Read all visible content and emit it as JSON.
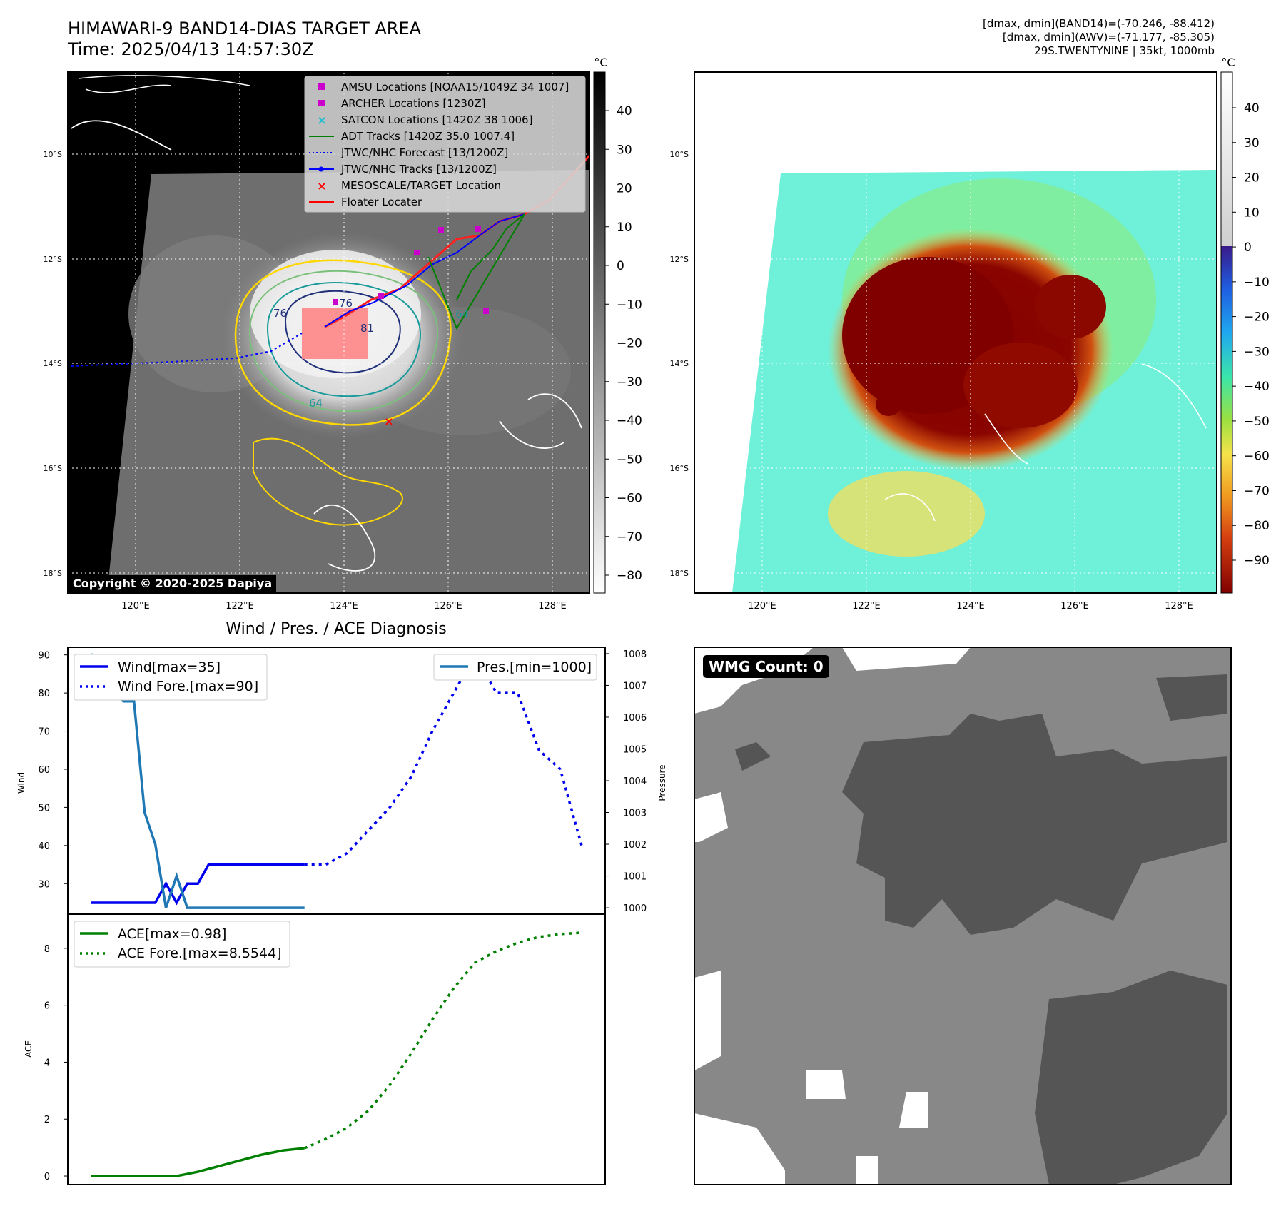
{
  "header": {
    "title_line1": "HIMAWARI-9 BAND14-DIAS TARGET AREA",
    "title_line2": "Time: 2025/04/13 14:57:30Z",
    "info_line1": "[dmax, dmin](BAND14)=(-70.246, -88.412)",
    "info_line2": "[dmax, dmin](AWV)=(-71.177, -85.305)",
    "info_line3": "29S.TWENTYNINE | 35kt, 1000mb"
  },
  "map_axes": {
    "lat_ticks": [
      "10°S",
      "12°S",
      "14°S",
      "16°S",
      "18°S"
    ],
    "lon_ticks": [
      "120°E",
      "122°E",
      "124°E",
      "126°E",
      "128°E"
    ]
  },
  "ir_panel": {
    "colorbar_unit": "°C",
    "colorbar_ticks": [
      "40",
      "30",
      "20",
      "10",
      "0",
      "−10",
      "−20",
      "−30",
      "−40",
      "−50",
      "−60",
      "−70",
      "−80"
    ],
    "contour_labels": [
      "76",
      "76",
      "81",
      "64",
      "64"
    ],
    "copyright": "Copyright © 2020-2025 Dapiya",
    "legend": [
      {
        "label": "AMSU Locations [NOAA15/1049Z 34 1007]",
        "color": "#cc00cc",
        "marker": "square"
      },
      {
        "label": "ARCHER Locations [1230Z]",
        "color": "#cc00cc",
        "marker": "square"
      },
      {
        "label": "SATCON Locations [1420Z 38 1006]",
        "color": "#17becf",
        "marker": "x"
      },
      {
        "label": "ADT Tracks [1420Z 35.0 1007.4]",
        "color": "#008000",
        "marker": "line"
      },
      {
        "label": "JTWC/NHC Forecast [13/1200Z]",
        "color": "#0000ff",
        "marker": "dotted"
      },
      {
        "label": "JTWC/NHC Tracks [13/1200Z]",
        "color": "#0000ff",
        "marker": "line-dot"
      },
      {
        "label": "MESOSCALE/TARGET Location",
        "color": "#ff0000",
        "marker": "x"
      },
      {
        "label": "Floater Locater",
        "color": "#ff0000",
        "marker": "line"
      }
    ]
  },
  "awv_panel": {
    "colorbar_unit": "°C",
    "colorbar_ticks": [
      "40",
      "30",
      "20",
      "10",
      "0",
      "−10",
      "−20",
      "−30",
      "−40",
      "−50",
      "−60",
      "−70",
      "−80",
      "−90"
    ]
  },
  "wmg_panel": {
    "badge": "WMG Count: 0"
  },
  "diag": {
    "title": "Wind / Pres. / ACE Diagnosis",
    "wind_ylabel": "Wind",
    "pres_ylabel": "Pressure",
    "ace_ylabel": "ACE",
    "wind_legend": [
      "Wind[max=35]",
      "Wind Fore.[max=90]"
    ],
    "pres_legend": [
      "Pres.[min=1000]"
    ],
    "ace_legend": [
      "ACE[max=0.98]",
      "ACE Fore.[max=8.5544]"
    ],
    "colors": {
      "wind": "#0000ee",
      "pres": "#1f77b4",
      "ace": "#008000"
    }
  },
  "chart_data": [
    {
      "type": "line",
      "title": "Wind / Pres. / ACE Diagnosis",
      "ylabel": "Wind",
      "ylim": [
        22,
        92
      ],
      "y_ticks": [
        "90",
        "80",
        "70",
        "60",
        "50",
        "40",
        "30"
      ],
      "series": [
        {
          "name": "Wind[max=35]",
          "style": "solid",
          "x": [
            0,
            1,
            2,
            3,
            4,
            5,
            6,
            7,
            8,
            9,
            10,
            11,
            12,
            13,
            14,
            15,
            16,
            17,
            18,
            19,
            20
          ],
          "values": [
            25,
            25,
            25,
            25,
            25,
            25,
            25,
            30,
            25,
            30,
            30,
            35,
            35,
            35,
            35,
            35,
            35,
            35,
            35,
            35,
            35
          ]
        },
        {
          "name": "Wind Fore.[max=90]",
          "style": "dotted",
          "x": [
            20,
            22,
            24,
            26,
            28,
            30,
            32,
            34,
            36,
            38,
            40,
            42,
            44,
            46
          ],
          "values": [
            35,
            35,
            38,
            44,
            50,
            58,
            70,
            80,
            90,
            80,
            80,
            65,
            60,
            40
          ]
        }
      ]
    },
    {
      "type": "line",
      "ylabel": "Pressure",
      "ylim": [
        999.8,
        1008.2
      ],
      "y_ticks": [
        "1008",
        "1007",
        "1006",
        "1005",
        "1004",
        "1003",
        "1002",
        "1001",
        "1000"
      ],
      "series": [
        {
          "name": "Pres.[min=1000]",
          "style": "solid",
          "x": [
            0,
            1,
            2,
            3,
            4,
            5,
            6,
            7,
            8,
            9,
            10,
            11,
            12,
            13,
            14,
            15,
            16,
            17,
            18,
            19,
            20
          ],
          "values": [
            1008,
            1007,
            1007,
            1006.5,
            1006.5,
            1003,
            1002,
            1000,
            1001,
            1000,
            1000,
            1000,
            1000,
            1000,
            1000,
            1000,
            1000,
            1000,
            1000,
            1000,
            1000
          ]
        }
      ]
    },
    {
      "type": "line",
      "ylabel": "ACE",
      "ylim": [
        -0.3,
        9.2
      ],
      "y_ticks": [
        "8",
        "6",
        "4",
        "2",
        "0"
      ],
      "series": [
        {
          "name": "ACE[max=0.98]",
          "style": "solid",
          "x": [
            0,
            2,
            4,
            6,
            8,
            10,
            12,
            14,
            16,
            18,
            20
          ],
          "values": [
            0,
            0,
            0,
            0,
            0,
            0.15,
            0.35,
            0.55,
            0.75,
            0.9,
            0.98
          ]
        },
        {
          "name": "ACE Fore.[max=8.5544]",
          "style": "dotted",
          "x": [
            20,
            22,
            24,
            26,
            28,
            30,
            32,
            34,
            36,
            38,
            40,
            42,
            44,
            46
          ],
          "values": [
            0.98,
            1.3,
            1.7,
            2.3,
            3.2,
            4.3,
            5.5,
            6.6,
            7.5,
            7.9,
            8.2,
            8.4,
            8.5,
            8.55
          ]
        }
      ]
    }
  ]
}
